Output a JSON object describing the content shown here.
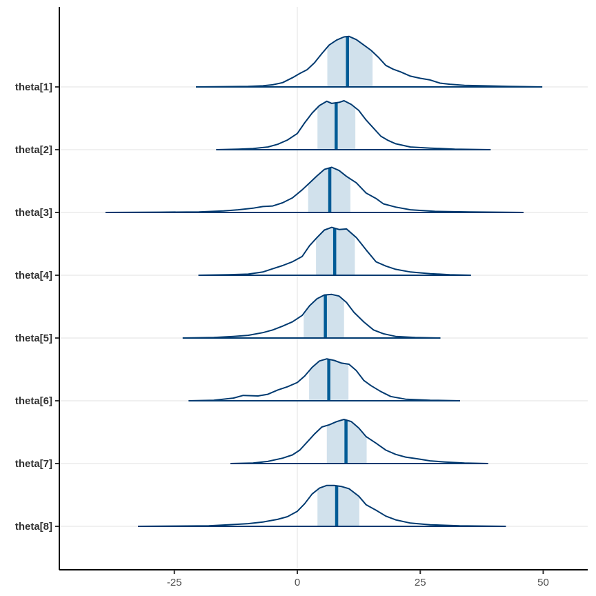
{
  "chart_data": {
    "type": "ridgeline",
    "title": "",
    "xlabel": "",
    "ylabel": "",
    "xlim": [
      -48,
      59
    ],
    "x_ticks": [
      -25,
      0,
      25,
      50
    ],
    "grid": "horizontal at each parameter, vertical reference at 0",
    "colors": {
      "outline": "#003a70",
      "median": "#005b96",
      "interval_fill": "#d1e1ec",
      "grid": "#ebebeb",
      "axis": "#000000"
    },
    "series": [
      {
        "name": "theta[1]",
        "median": 10.2,
        "interval": [
          6.1,
          15.3
        ],
        "range": [
          -20.6,
          49.8
        ],
        "density": [
          [
            -20.6,
            0
          ],
          [
            -15,
            0.005
          ],
          [
            -10,
            0.01
          ],
          [
            -7,
            0.02
          ],
          [
            -5,
            0.04
          ],
          [
            -3,
            0.08
          ],
          [
            -1,
            0.17
          ],
          [
            0.5,
            0.25
          ],
          [
            2,
            0.32
          ],
          [
            3.5,
            0.45
          ],
          [
            5,
            0.62
          ],
          [
            6.5,
            0.78
          ],
          [
            8,
            0.87
          ],
          [
            9.5,
            0.93
          ],
          [
            10.5,
            0.94
          ],
          [
            12,
            0.88
          ],
          [
            13.5,
            0.78
          ],
          [
            15,
            0.68
          ],
          [
            16.5,
            0.55
          ],
          [
            18,
            0.4
          ],
          [
            19.5,
            0.33
          ],
          [
            21,
            0.28
          ],
          [
            23,
            0.2
          ],
          [
            25,
            0.16
          ],
          [
            27,
            0.13
          ],
          [
            29,
            0.07
          ],
          [
            31,
            0.05
          ],
          [
            34,
            0.03
          ],
          [
            38,
            0.02
          ],
          [
            43,
            0.01
          ],
          [
            49.8,
            0
          ]
        ]
      },
      {
        "name": "theta[2]",
        "median": 7.9,
        "interval": [
          4.1,
          11.8
        ],
        "range": [
          -16.5,
          39.3
        ],
        "density": [
          [
            -16.5,
            0
          ],
          [
            -12,
            0.01
          ],
          [
            -9,
            0.02
          ],
          [
            -6,
            0.05
          ],
          [
            -4,
            0.1
          ],
          [
            -2,
            0.18
          ],
          [
            0,
            0.3
          ],
          [
            1.5,
            0.5
          ],
          [
            3,
            0.68
          ],
          [
            4.5,
            0.82
          ],
          [
            6,
            0.9
          ],
          [
            7,
            0.86
          ],
          [
            8.5,
            0.88
          ],
          [
            9.5,
            0.91
          ],
          [
            11,
            0.84
          ],
          [
            12.5,
            0.73
          ],
          [
            14,
            0.55
          ],
          [
            15.5,
            0.4
          ],
          [
            17,
            0.25
          ],
          [
            18.5,
            0.17
          ],
          [
            20,
            0.11
          ],
          [
            23,
            0.05
          ],
          [
            27,
            0.03
          ],
          [
            32,
            0.01
          ],
          [
            39.3,
            0
          ]
        ]
      },
      {
        "name": "theta[3]",
        "median": 6.6,
        "interval": [
          2.2,
          10.8
        ],
        "range": [
          -39.0,
          46.0
        ],
        "density": [
          [
            -39,
            0
          ],
          [
            -28,
            0.005
          ],
          [
            -20,
            0.01
          ],
          [
            -15,
            0.03
          ],
          [
            -12,
            0.05
          ],
          [
            -9,
            0.08
          ],
          [
            -7,
            0.11
          ],
          [
            -5,
            0.12
          ],
          [
            -3,
            0.18
          ],
          [
            -1,
            0.27
          ],
          [
            1,
            0.42
          ],
          [
            2.5,
            0.55
          ],
          [
            4,
            0.68
          ],
          [
            5.5,
            0.8
          ],
          [
            7,
            0.84
          ],
          [
            8.5,
            0.78
          ],
          [
            10,
            0.67
          ],
          [
            12,
            0.55
          ],
          [
            14,
            0.36
          ],
          [
            16,
            0.26
          ],
          [
            17.5,
            0.16
          ],
          [
            20,
            0.1
          ],
          [
            23,
            0.05
          ],
          [
            28,
            0.02
          ],
          [
            35,
            0.01
          ],
          [
            46,
            0
          ]
        ]
      },
      {
        "name": "theta[4]",
        "median": 7.6,
        "interval": [
          3.8,
          11.7
        ],
        "range": [
          -20.1,
          35.3
        ],
        "density": [
          [
            -20.1,
            0
          ],
          [
            -14,
            0.01
          ],
          [
            -10,
            0.02
          ],
          [
            -7,
            0.06
          ],
          [
            -5,
            0.12
          ],
          [
            -3,
            0.18
          ],
          [
            -1,
            0.25
          ],
          [
            1,
            0.35
          ],
          [
            2.5,
            0.55
          ],
          [
            4,
            0.7
          ],
          [
            5.5,
            0.84
          ],
          [
            7,
            0.89
          ],
          [
            8.5,
            0.85
          ],
          [
            10,
            0.86
          ],
          [
            12,
            0.7
          ],
          [
            14,
            0.47
          ],
          [
            16,
            0.25
          ],
          [
            18,
            0.17
          ],
          [
            20,
            0.11
          ],
          [
            23,
            0.06
          ],
          [
            27,
            0.03
          ],
          [
            31,
            0.01
          ],
          [
            35.3,
            0
          ]
        ]
      },
      {
        "name": "theta[5]",
        "median": 5.7,
        "interval": [
          1.3,
          9.5
        ],
        "range": [
          -23.3,
          29.1
        ],
        "density": [
          [
            -23.3,
            0
          ],
          [
            -17,
            0.01
          ],
          [
            -13,
            0.03
          ],
          [
            -10,
            0.05
          ],
          [
            -7,
            0.1
          ],
          [
            -5,
            0.15
          ],
          [
            -3,
            0.22
          ],
          [
            -1,
            0.3
          ],
          [
            1,
            0.42
          ],
          [
            2.5,
            0.6
          ],
          [
            4,
            0.73
          ],
          [
            5.5,
            0.8
          ],
          [
            7,
            0.81
          ],
          [
            8.5,
            0.78
          ],
          [
            10,
            0.66
          ],
          [
            11.5,
            0.48
          ],
          [
            13.5,
            0.3
          ],
          [
            15.5,
            0.15
          ],
          [
            17.5,
            0.08
          ],
          [
            20,
            0.03
          ],
          [
            24,
            0.01
          ],
          [
            29.1,
            0
          ]
        ]
      },
      {
        "name": "theta[6]",
        "median": 6.4,
        "interval": [
          2.4,
          10.4
        ],
        "range": [
          -22.1,
          33.1
        ],
        "density": [
          [
            -22.1,
            0
          ],
          [
            -17,
            0.01
          ],
          [
            -13,
            0.05
          ],
          [
            -11,
            0.1
          ],
          [
            -8,
            0.09
          ],
          [
            -6,
            0.12
          ],
          [
            -4,
            0.2
          ],
          [
            -2,
            0.26
          ],
          [
            0,
            0.34
          ],
          [
            1.5,
            0.46
          ],
          [
            3,
            0.62
          ],
          [
            4.5,
            0.74
          ],
          [
            6,
            0.78
          ],
          [
            7.5,
            0.75
          ],
          [
            9,
            0.7
          ],
          [
            10.5,
            0.68
          ],
          [
            12,
            0.56
          ],
          [
            13.5,
            0.38
          ],
          [
            15,
            0.28
          ],
          [
            17,
            0.17
          ],
          [
            19,
            0.08
          ],
          [
            22,
            0.03
          ],
          [
            27,
            0.01
          ],
          [
            33.1,
            0
          ]
        ]
      },
      {
        "name": "theta[7]",
        "median": 9.9,
        "interval": [
          6.0,
          14.1
        ],
        "range": [
          -13.6,
          38.8
        ],
        "density": [
          [
            -13.6,
            0
          ],
          [
            -9,
            0.01
          ],
          [
            -6,
            0.04
          ],
          [
            -3,
            0.1
          ],
          [
            -1,
            0.16
          ],
          [
            0.5,
            0.25
          ],
          [
            2,
            0.4
          ],
          [
            3.5,
            0.55
          ],
          [
            5,
            0.68
          ],
          [
            6.5,
            0.72
          ],
          [
            8,
            0.78
          ],
          [
            9.5,
            0.82
          ],
          [
            11,
            0.78
          ],
          [
            12.5,
            0.66
          ],
          [
            14,
            0.5
          ],
          [
            16,
            0.38
          ],
          [
            18,
            0.25
          ],
          [
            20,
            0.17
          ],
          [
            22,
            0.12
          ],
          [
            25,
            0.08
          ],
          [
            27,
            0.05
          ],
          [
            30,
            0.03
          ],
          [
            34,
            0.01
          ],
          [
            38.8,
            0
          ]
        ]
      },
      {
        "name": "theta[8]",
        "median": 8.0,
        "interval": [
          4.1,
          12.6
        ],
        "range": [
          -32.4,
          42.4
        ],
        "density": [
          [
            -32.4,
            0
          ],
          [
            -25,
            0.005
          ],
          [
            -18,
            0.01
          ],
          [
            -14,
            0.03
          ],
          [
            -10,
            0.05
          ],
          [
            -7,
            0.08
          ],
          [
            -4,
            0.13
          ],
          [
            -2,
            0.18
          ],
          [
            0,
            0.28
          ],
          [
            1.5,
            0.42
          ],
          [
            3,
            0.6
          ],
          [
            4.5,
            0.71
          ],
          [
            6,
            0.76
          ],
          [
            7.5,
            0.76
          ],
          [
            9,
            0.74
          ],
          [
            10.5,
            0.7
          ],
          [
            12.5,
            0.56
          ],
          [
            14,
            0.4
          ],
          [
            16,
            0.3
          ],
          [
            18,
            0.19
          ],
          [
            20,
            0.12
          ],
          [
            23,
            0.06
          ],
          [
            27,
            0.03
          ],
          [
            33,
            0.01
          ],
          [
            42.4,
            0
          ]
        ]
      }
    ]
  }
}
